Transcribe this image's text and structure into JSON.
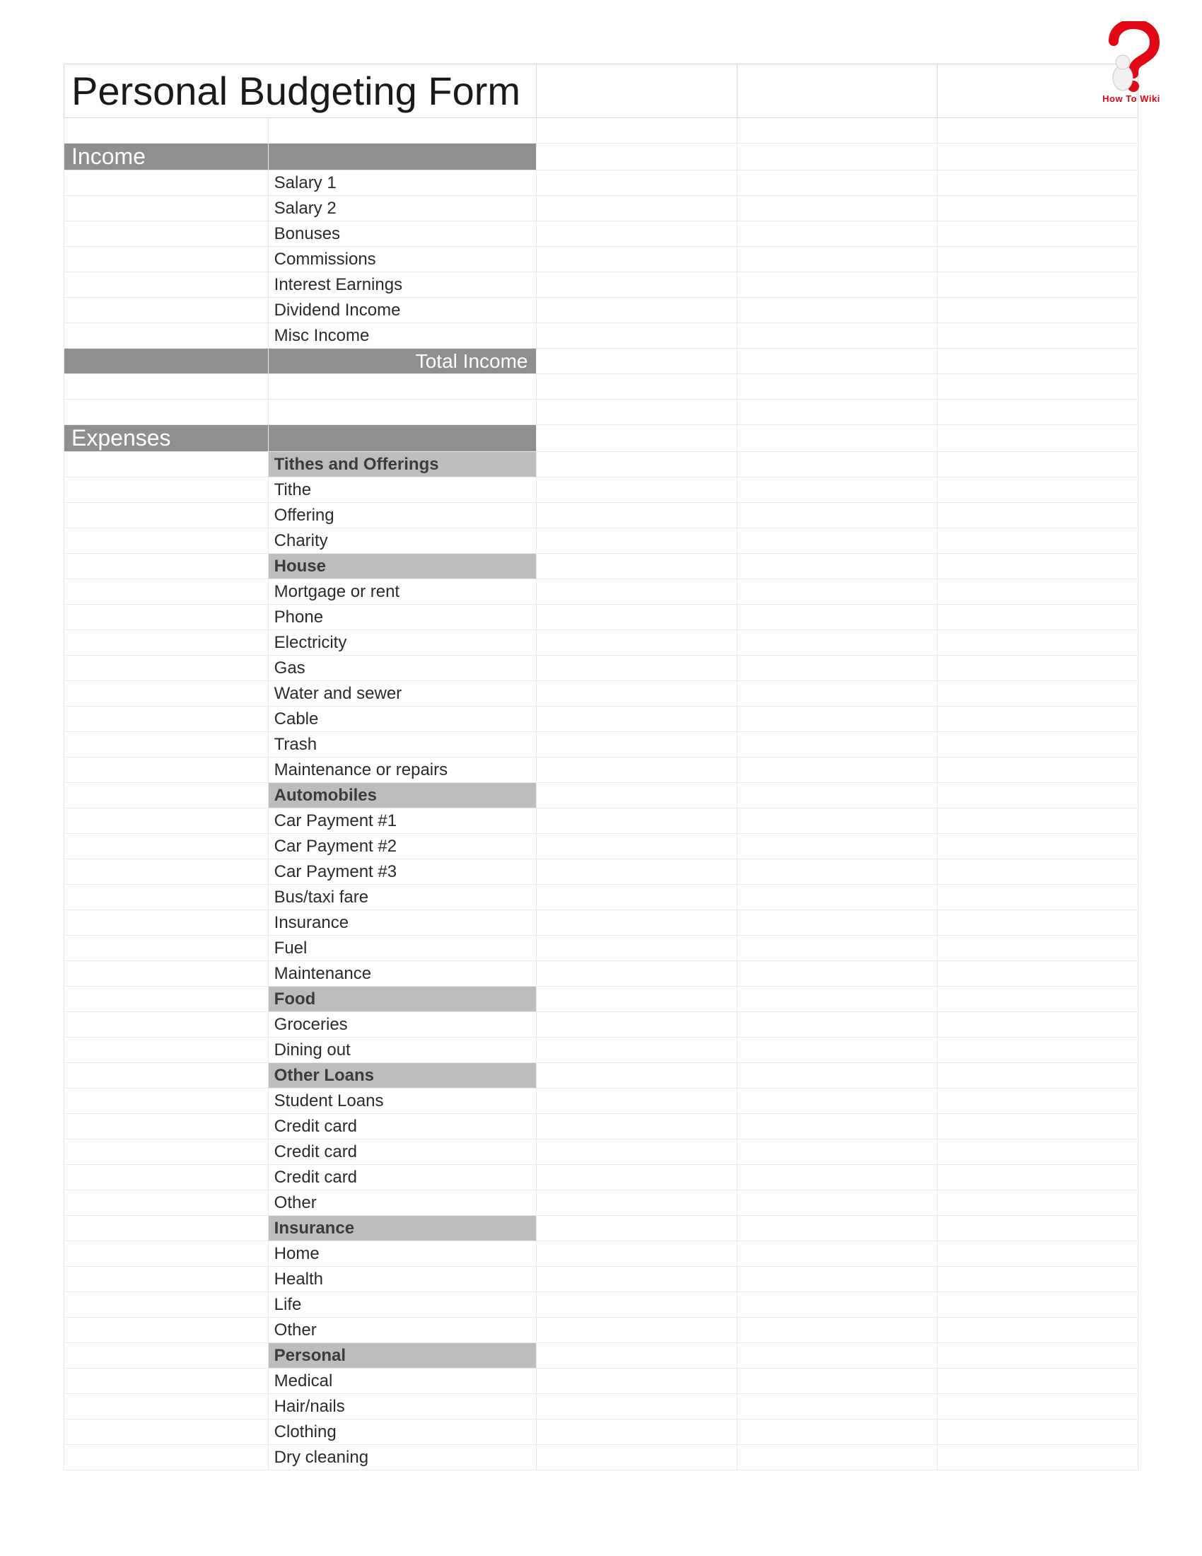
{
  "title": "Personal Budgeting Form",
  "logo_text": "How To Wiki",
  "colors": {
    "section_bg": "#8f8f8f",
    "section_text": "#ffffff",
    "subheader_bg": "#bdbdbd",
    "subheader_text": "#3b3b3b",
    "row_border": "#e9e9e9",
    "title_border": "#d9d9d9",
    "logo_red": "#e30613"
  },
  "income": {
    "section_label": "Income",
    "items": [
      "Salary 1",
      "Salary 2",
      "Bonuses",
      "Commissions",
      "Interest Earnings",
      "Dividend Income",
      "Misc Income"
    ],
    "total_label": "Total Income"
  },
  "expenses": {
    "section_label": "Expenses",
    "groups": [
      {
        "header": "Tithes and Offerings",
        "items": [
          "Tithe",
          "Offering",
          "Charity"
        ]
      },
      {
        "header": "House",
        "items": [
          "Mortgage or rent",
          "Phone",
          "Electricity",
          "Gas",
          "Water and sewer",
          "Cable",
          "Trash",
          "Maintenance or repairs"
        ]
      },
      {
        "header": "Automobiles",
        "items": [
          "Car Payment #1",
          "Car Payment #2",
          "Car Payment #3",
          "Bus/taxi fare",
          "Insurance",
          "Fuel",
          "Maintenance"
        ]
      },
      {
        "header": "Food",
        "items": [
          "Groceries",
          "Dining out"
        ]
      },
      {
        "header": "Other Loans",
        "items": [
          "Student Loans",
          "Credit card",
          "Credit card",
          "Credit card",
          "Other"
        ]
      },
      {
        "header": "Insurance",
        "items": [
          "Home",
          "Health",
          "Life",
          "Other"
        ]
      },
      {
        "header": "Personal",
        "items": [
          "Medical",
          "Hair/nails",
          "Clothing",
          "Dry cleaning"
        ]
      }
    ]
  }
}
